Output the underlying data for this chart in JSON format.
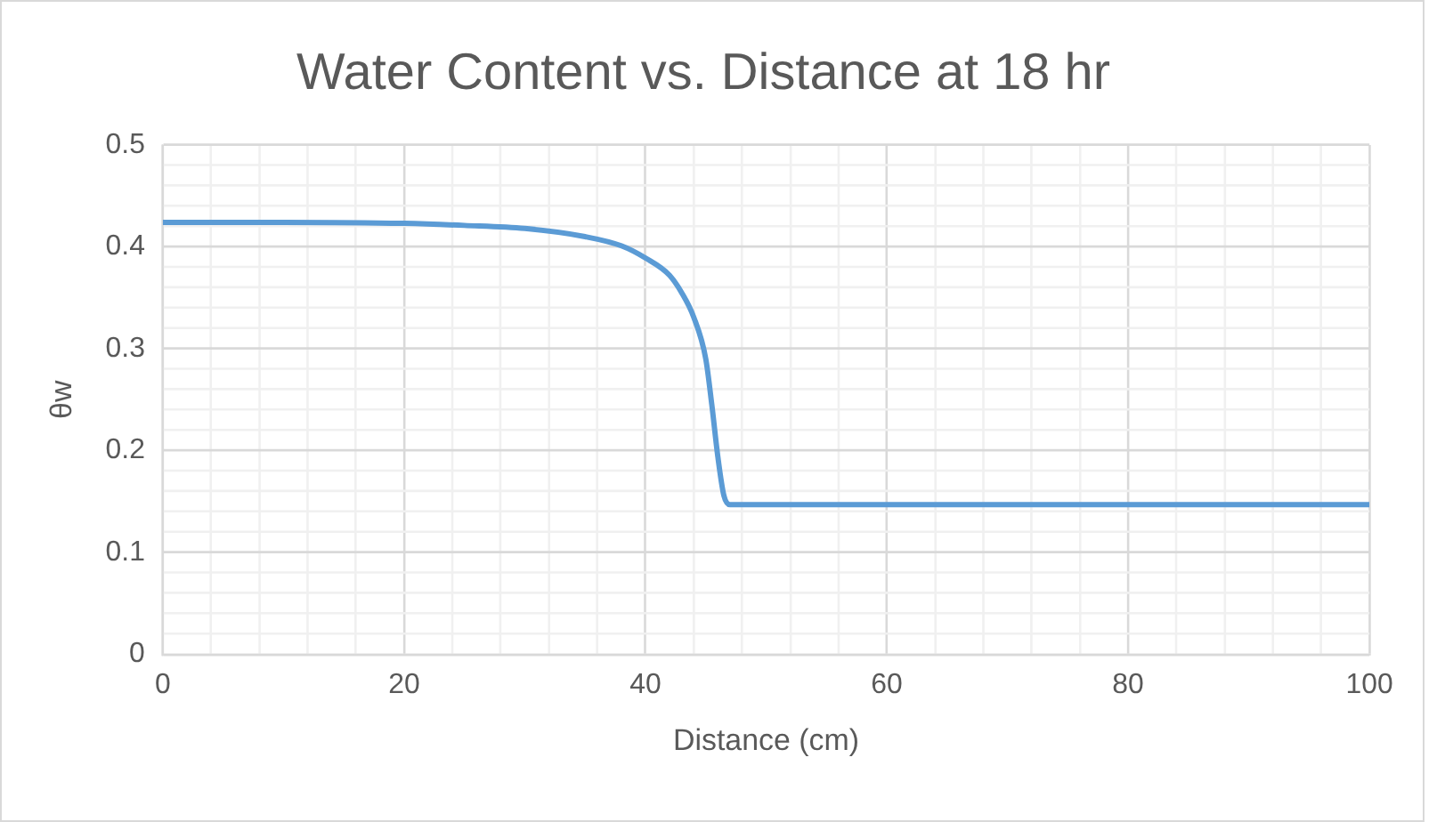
{
  "chart_data": {
    "type": "line",
    "title": "Water Content vs. Distance at 18 hr",
    "xlabel": "Distance (cm)",
    "ylabel": "θw",
    "x": [
      0,
      10,
      20,
      25,
      30,
      35,
      38,
      40,
      42,
      43,
      44,
      45,
      45.5,
      46,
      46.5,
      47,
      50,
      60,
      80,
      100
    ],
    "series": [
      {
        "color": "#5b9bd5",
        "values": [
          0.424,
          0.424,
          0.423,
          0.421,
          0.418,
          0.41,
          0.401,
          0.389,
          0.372,
          0.355,
          0.331,
          0.29,
          0.245,
          0.194,
          0.156,
          0.147,
          0.147,
          0.147,
          0.147,
          0.147
        ]
      }
    ],
    "xlim": [
      0,
      100
    ],
    "xticks": [
      0,
      20,
      40,
      60,
      80,
      100
    ],
    "ylim": [
      0,
      0.5
    ],
    "yticks": [
      0,
      0.1,
      0.2,
      0.3,
      0.4,
      0.5
    ],
    "grid": true,
    "marker": "none",
    "line_style": "solid",
    "legend": false
  }
}
